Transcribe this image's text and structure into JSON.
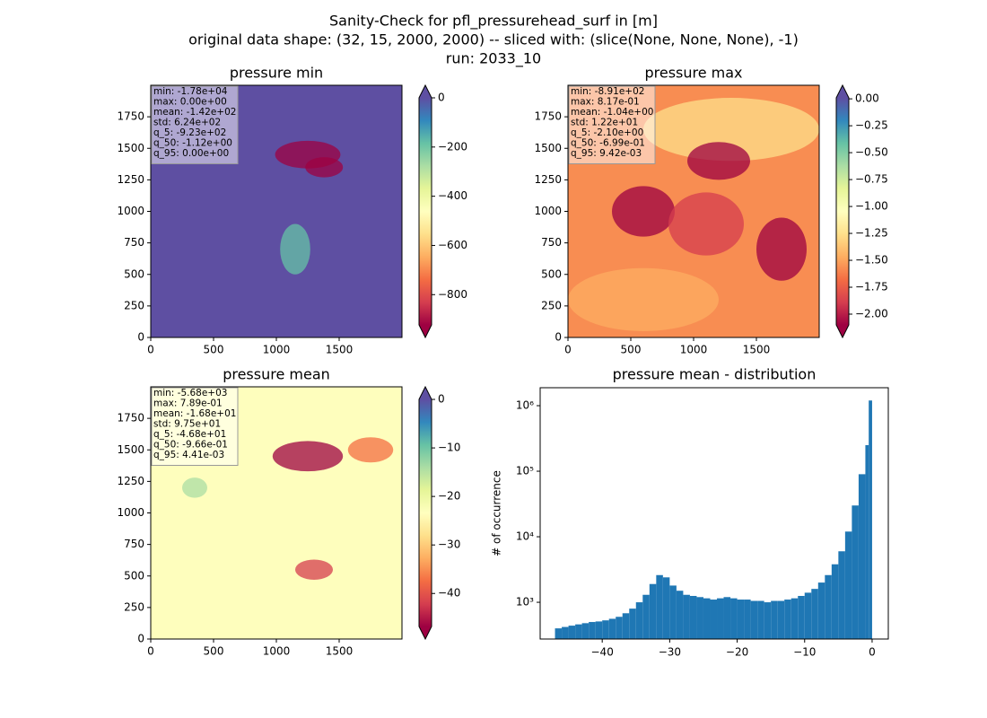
{
  "chart_data": [
    {
      "type": "heatmap",
      "suptitle": [
        "Sanity-Check for pfl_pressurehead_surf in [m]",
        "original data shape: (32, 15, 2000, 2000) -- sliced with: (slice(None, None, None), -1)",
        "run: 2033_10"
      ],
      "title": "pressure min",
      "xlim": [
        0,
        2000
      ],
      "ylim": [
        0,
        2000
      ],
      "xticks": [
        0,
        500,
        1000,
        1500
      ],
      "yticks": [
        0,
        250,
        500,
        750,
        1000,
        1250,
        1500,
        1750
      ],
      "cmap": "Spectral",
      "clim": [
        -923,
        0
      ],
      "cticks": [
        0,
        {
          "value": -200,
          "label": "−200"
        },
        {
          "value": -400,
          "label": "−400"
        },
        {
          "value": -600,
          "label": "−600"
        },
        {
          "value": -800,
          "label": "−800"
        }
      ],
      "stats": [
        "min: -1.78e+04",
        "max: 0.00e+00",
        "mean: -1.42e+02",
        "std: 6.24e+02",
        "q_5: -9.23e+02",
        "q_50: -1.12e+00",
        "q_95: 0.00e+00"
      ]
    },
    {
      "type": "heatmap",
      "title": "pressure max",
      "xlim": [
        0,
        2000
      ],
      "ylim": [
        0,
        2000
      ],
      "xticks": [
        0,
        500,
        1000,
        1500
      ],
      "yticks": [
        0,
        250,
        500,
        750,
        1000,
        1250,
        1500,
        1750
      ],
      "cmap": "Spectral",
      "clim": [
        -2.1,
        0.00942
      ],
      "cticks": [
        {
          "value": 0,
          "label": "0.00"
        },
        {
          "value": -0.25,
          "label": "−0.25"
        },
        {
          "value": -0.5,
          "label": "−0.50"
        },
        {
          "value": -0.75,
          "label": "−0.75"
        },
        {
          "value": -1,
          "label": "−1.00"
        },
        {
          "value": -1.25,
          "label": "−1.25"
        },
        {
          "value": -1.5,
          "label": "−1.50"
        },
        {
          "value": -1.75,
          "label": "−1.75"
        },
        {
          "value": -2,
          "label": "−2.00"
        }
      ],
      "stats": [
        "min: -8.91e+02",
        "max: 8.17e-01",
        "mean: -1.04e+00",
        "std: 1.22e+01",
        "q_5: -2.10e+00",
        "q_50: -6.99e-01",
        "q_95: 9.42e-03"
      ]
    },
    {
      "type": "heatmap",
      "title": "pressure mean",
      "xlim": [
        0,
        2000
      ],
      "ylim": [
        0,
        2000
      ],
      "xticks": [
        0,
        500,
        1000,
        1500
      ],
      "yticks": [
        0,
        250,
        500,
        750,
        1000,
        1250,
        1500,
        1750
      ],
      "cmap": "Spectral",
      "clim": [
        -46.8,
        0.00441
      ],
      "cticks": [
        0,
        {
          "value": -10,
          "label": "−10"
        },
        {
          "value": -20,
          "label": "−20"
        },
        {
          "value": -30,
          "label": "−30"
        },
        {
          "value": -40,
          "label": "−40"
        }
      ],
      "stats": [
        "min: -5.68e+03",
        "max: 7.89e-01",
        "mean: -1.68e+01",
        "std: 9.75e+01",
        "q_5: -4.68e+01",
        "q_50: -9.66e-01",
        "q_95: 4.41e-03"
      ]
    },
    {
      "type": "histogram",
      "title": "pressure mean - distribution",
      "y_label": "# of occurrence",
      "color": "#1f77b4",
      "log_y": true,
      "bins": [
        -47,
        -46,
        -45,
        -44,
        -43,
        -42,
        -41,
        -40,
        -39,
        -38,
        -37,
        -36,
        -35,
        -34,
        -33,
        -32,
        -31,
        -30,
        -29,
        -28,
        -27,
        -26,
        -25,
        -24,
        -23,
        -22,
        -21,
        -20,
        -19,
        -18,
        -17,
        -16,
        -15,
        -14,
        -13,
        -12,
        -11,
        -10,
        -9,
        -8,
        -7,
        -6,
        -5,
        -4,
        -3,
        -2,
        -1,
        -0.5,
        0
      ],
      "values": [
        400,
        420,
        440,
        460,
        480,
        500,
        510,
        530,
        560,
        600,
        680,
        800,
        1000,
        1300,
        1900,
        2600,
        2400,
        1800,
        1500,
        1300,
        1250,
        1200,
        1150,
        1100,
        1150,
        1200,
        1150,
        1100,
        1100,
        1050,
        1050,
        1000,
        1050,
        1050,
        1100,
        1150,
        1250,
        1400,
        1600,
        2000,
        2600,
        3800,
        6000,
        12000,
        30000,
        90000,
        250000,
        1200000
      ],
      "xlim": [
        -49.2,
        2.4
      ],
      "ylim": [
        275,
        1880000
      ],
      "xticks": [
        {
          "value": -40,
          "label": "−40"
        },
        {
          "value": -30,
          "label": "−30"
        },
        {
          "value": -20,
          "label": "−20"
        },
        {
          "value": -10,
          "label": "−10"
        },
        0
      ],
      "yticks": [
        {
          "value": 1000,
          "label": "10³"
        },
        {
          "value": 10000,
          "label": "10⁴"
        },
        {
          "value": 100000,
          "label": "10⁵"
        },
        {
          "value": 1000000,
          "label": "10⁶"
        }
      ]
    }
  ]
}
